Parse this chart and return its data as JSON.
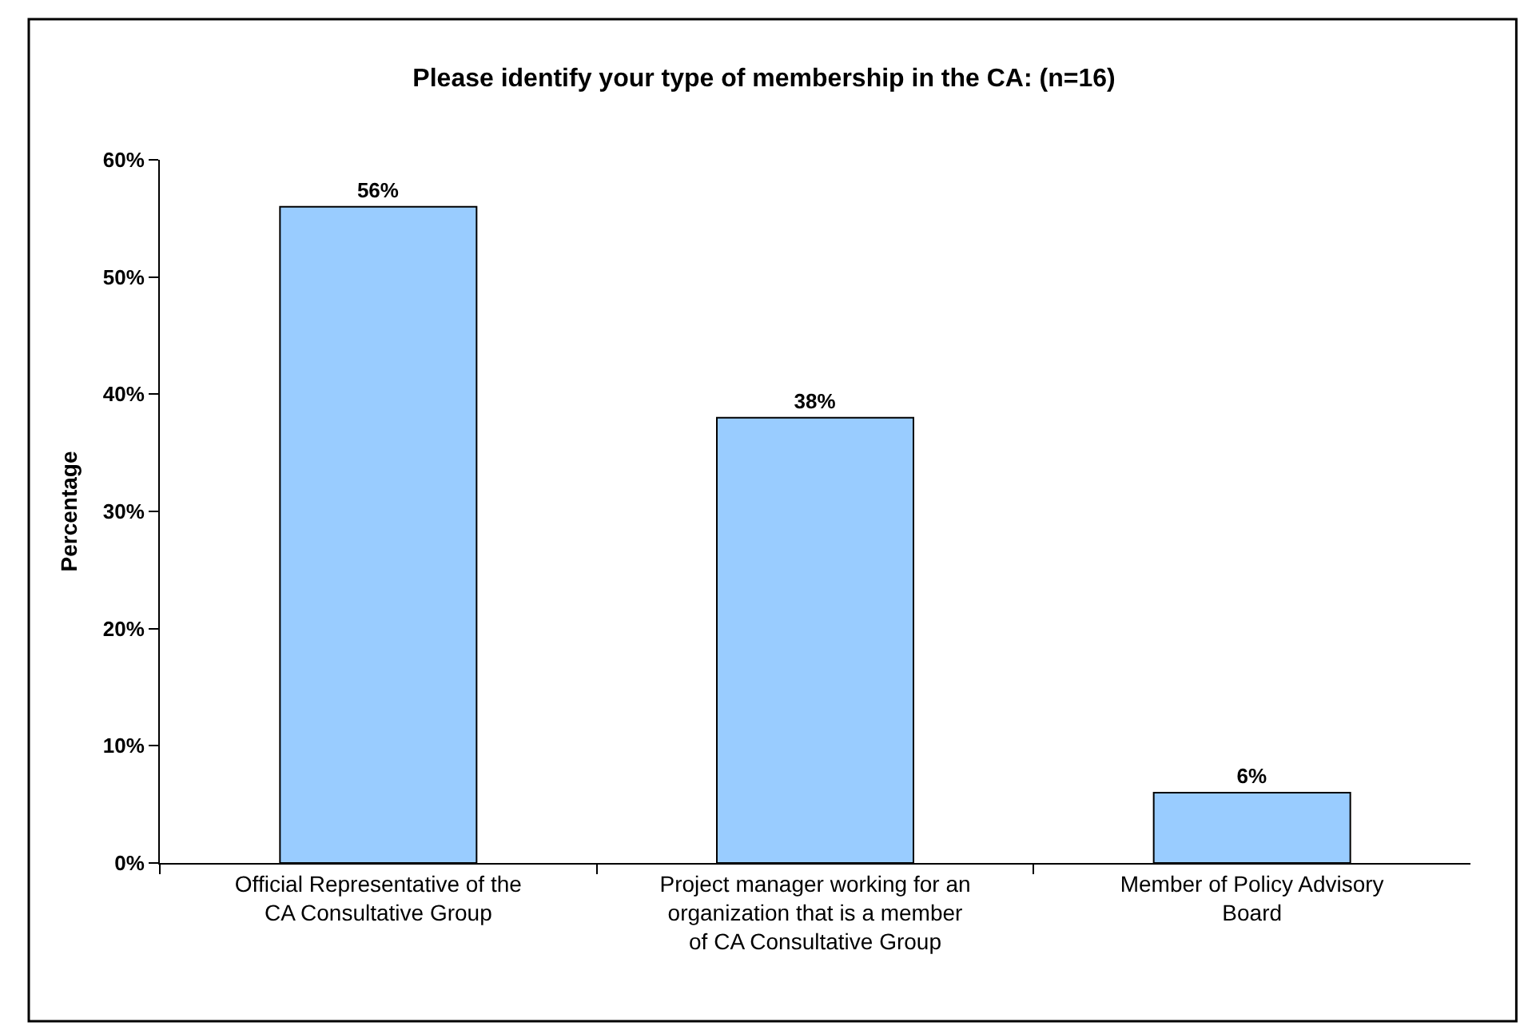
{
  "chart_data": {
    "type": "bar",
    "title": "Please identify your type of membership in the CA: (n=16)",
    "ylabel": "Percentage",
    "categories": [
      "Official Representative of the CA Consultative Group",
      "Project manager working for an organization that is a member of CA Consultative Group",
      "Member of Policy Advisory Board"
    ],
    "values": [
      56,
      38,
      6
    ],
    "value_labels": [
      "56%",
      "38%",
      "6%"
    ],
    "color": "#99ccff",
    "ylim": [
      0,
      60
    ],
    "yticks": [
      {
        "value": 0,
        "label": "0%"
      },
      {
        "value": 10,
        "label": "10%"
      },
      {
        "value": 20,
        "label": "20%"
      },
      {
        "value": 30,
        "label": "30%"
      },
      {
        "value": 40,
        "label": "40%"
      },
      {
        "value": 50,
        "label": "50%"
      },
      {
        "value": 60,
        "label": "60%"
      }
    ]
  }
}
